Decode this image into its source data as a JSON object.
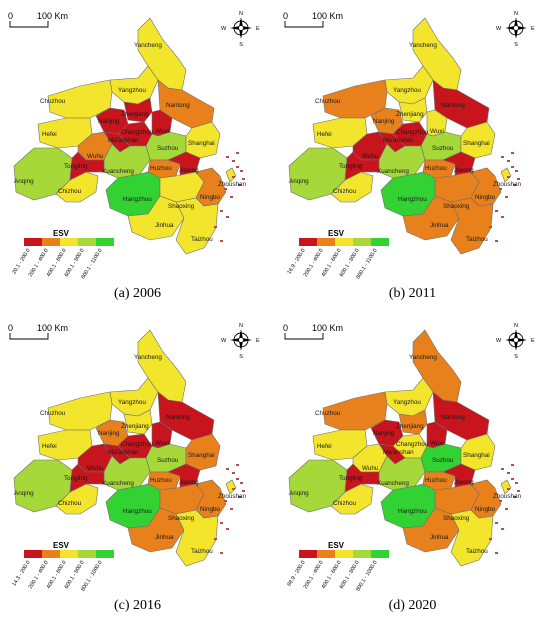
{
  "colors": {
    "c1": "#c8141c",
    "c2": "#e8811c",
    "c3": "#f2e52c",
    "c4": "#a6d83a",
    "c5": "#33d233",
    "island": "#b84a52"
  },
  "common": {
    "scale_zero": "0",
    "scale_label": "100 Km",
    "north": "N",
    "south": "S",
    "west": "W",
    "east": "E",
    "legend_title": "ESV"
  },
  "cities": [
    "Yancheng",
    "Yangzhou",
    "Nantong",
    "Chuzhou",
    "Nanjing",
    "Zhenjiang",
    "Changzhou",
    "Wuxi",
    "Suzhou",
    "Shanghai",
    "Hefei",
    "Wuhu",
    "Ma'anshan",
    "Xuancheng",
    "Huzhou",
    "Jiaxing",
    "Anqing",
    "Chizhou",
    "Tongling",
    "Hangzhou",
    "Shaoxing",
    "Ningbo",
    "Zhoushan",
    "Jinhua",
    "Taizhou"
  ],
  "panels": [
    {
      "caption": "(a) 2006",
      "legend": [
        "20.1 - 200.0",
        "200.1 - 400.0",
        "400.1 - 600.0",
        "600.1 - 800.0",
        "800.1 - 1100.0"
      ],
      "fills": {
        "Yancheng": "c3",
        "Yangzhou": "c3",
        "Nantong": "c2",
        "Chuzhou": "c3",
        "Nanjing": "c1",
        "Zhenjiang": "c1",
        "Changzhou": "c1",
        "Wuxi": "c1",
        "Suzhou": "c4",
        "Shanghai": "c3",
        "Hefei": "c3",
        "Wuhu": "c2",
        "Ma'anshan": "c1",
        "Xuancheng": "c4",
        "Huzhou": "c2",
        "Jiaxing": "c1",
        "Anqing": "c4",
        "Chizhou": "c3",
        "Tongling": "c1",
        "Hangzhou": "c5",
        "Shaoxing": "c3",
        "Ningbo": "c2",
        "Zhoushan": "c3",
        "Jinhua": "c3",
        "Taizhou": "c3"
      }
    },
    {
      "caption": "(b) 2011",
      "legend": [
        "16.9 - 200.0",
        "200.1 - 400.0",
        "400.1 - 600.0",
        "600.1 - 800.0",
        "800.1 - 1100.0"
      ],
      "fills": {
        "Yancheng": "c3",
        "Yangzhou": "c3",
        "Nantong": "c1",
        "Chuzhou": "c2",
        "Nanjing": "c2",
        "Zhenjiang": "c3",
        "Changzhou": "c1",
        "Wuxi": "c3",
        "Suzhou": "c4",
        "Shanghai": "c3",
        "Hefei": "c3",
        "Wuhu": "c1",
        "Ma'anshan": "c1",
        "Xuancheng": "c4",
        "Huzhou": "c2",
        "Jiaxing": "c1",
        "Anqing": "c4",
        "Chizhou": "c3",
        "Tongling": "c1",
        "Hangzhou": "c5",
        "Shaoxing": "c2",
        "Ningbo": "c2",
        "Zhoushan": "c3",
        "Jinhua": "c2",
        "Taizhou": "c2"
      }
    },
    {
      "caption": "(c) 2016",
      "legend": [
        "14.3 - 200.0",
        "200.1 - 400.0",
        "400.1 - 600.0",
        "600.1 - 800.0",
        "800.1 - 1000.0"
      ],
      "fills": {
        "Yancheng": "c3",
        "Yangzhou": "c3",
        "Nantong": "c1",
        "Chuzhou": "c3",
        "Nanjing": "c2",
        "Zhenjiang": "c3",
        "Changzhou": "c1",
        "Wuxi": "c1",
        "Suzhou": "c4",
        "Shanghai": "c2",
        "Hefei": "c3",
        "Wuhu": "c1",
        "Ma'anshan": "c1",
        "Xuancheng": "c4",
        "Huzhou": "c2",
        "Jiaxing": "c1",
        "Anqing": "c4",
        "Chizhou": "c3",
        "Tongling": "c1",
        "Hangzhou": "c5",
        "Shaoxing": "c2",
        "Ningbo": "c2",
        "Zhoushan": "c3",
        "Jinhua": "c2",
        "Taizhou": "c3"
      }
    },
    {
      "caption": "(d) 2020",
      "legend": [
        "88.9 - 200.0",
        "200.1 - 400.0",
        "400.1 - 600.0",
        "600.1 - 800.0",
        "800.1 - 1000.0"
      ],
      "fills": {
        "Yancheng": "c2",
        "Yangzhou": "c3",
        "Nantong": "c1",
        "Chuzhou": "c2",
        "Nanjing": "c1",
        "Zhenjiang": "c2",
        "Changzhou": "c3",
        "Wuxi": "c1",
        "Suzhou": "c5",
        "Shanghai": "c3",
        "Hefei": "c3",
        "Wuhu": "c3",
        "Ma'anshan": "c1",
        "Xuancheng": "c4",
        "Huzhou": "c2",
        "Jiaxing": "c1",
        "Anqing": "c4",
        "Chizhou": "c3",
        "Tongling": "c1",
        "Hangzhou": "c5",
        "Shaoxing": "c2",
        "Ningbo": "c2",
        "Zhoushan": "c3",
        "Jinhua": "c2",
        "Taizhou": "c3"
      }
    }
  ]
}
